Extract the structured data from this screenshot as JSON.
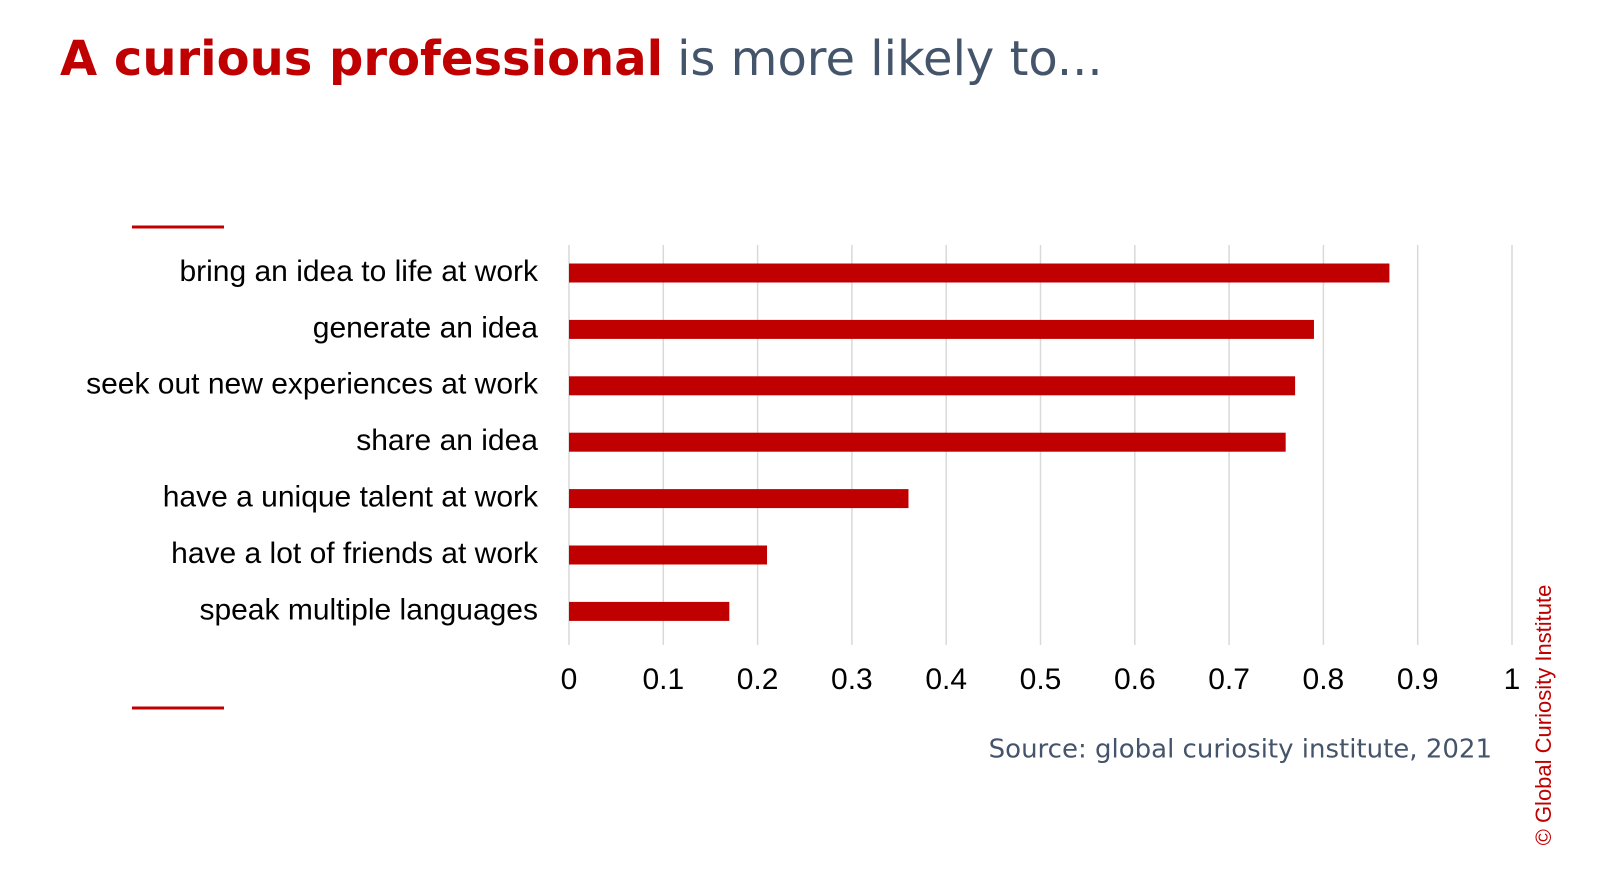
{
  "chart_data": {
    "type": "bar",
    "orientation": "horizontal",
    "title": "A curious professional",
    "title_rest": "is more likely to...",
    "categories": [
      "bring an idea to life at work",
      "generate an idea",
      "seek out new experiences at work",
      "share an idea",
      "have a unique talent at work",
      "have a lot of friends at work",
      "speak multiple languages"
    ],
    "values": [
      0.87,
      0.79,
      0.77,
      0.76,
      0.36,
      0.21,
      0.17
    ],
    "color": "#c00000",
    "xlim": [
      0,
      1
    ],
    "xticks": [
      0,
      0.1,
      0.2,
      0.3,
      0.4,
      0.5,
      0.6,
      0.7,
      0.8,
      0.9,
      1
    ],
    "grid": true,
    "source": "Source: global curiosity institute, 2021",
    "copyright": "© Global Curiosity Institute"
  }
}
